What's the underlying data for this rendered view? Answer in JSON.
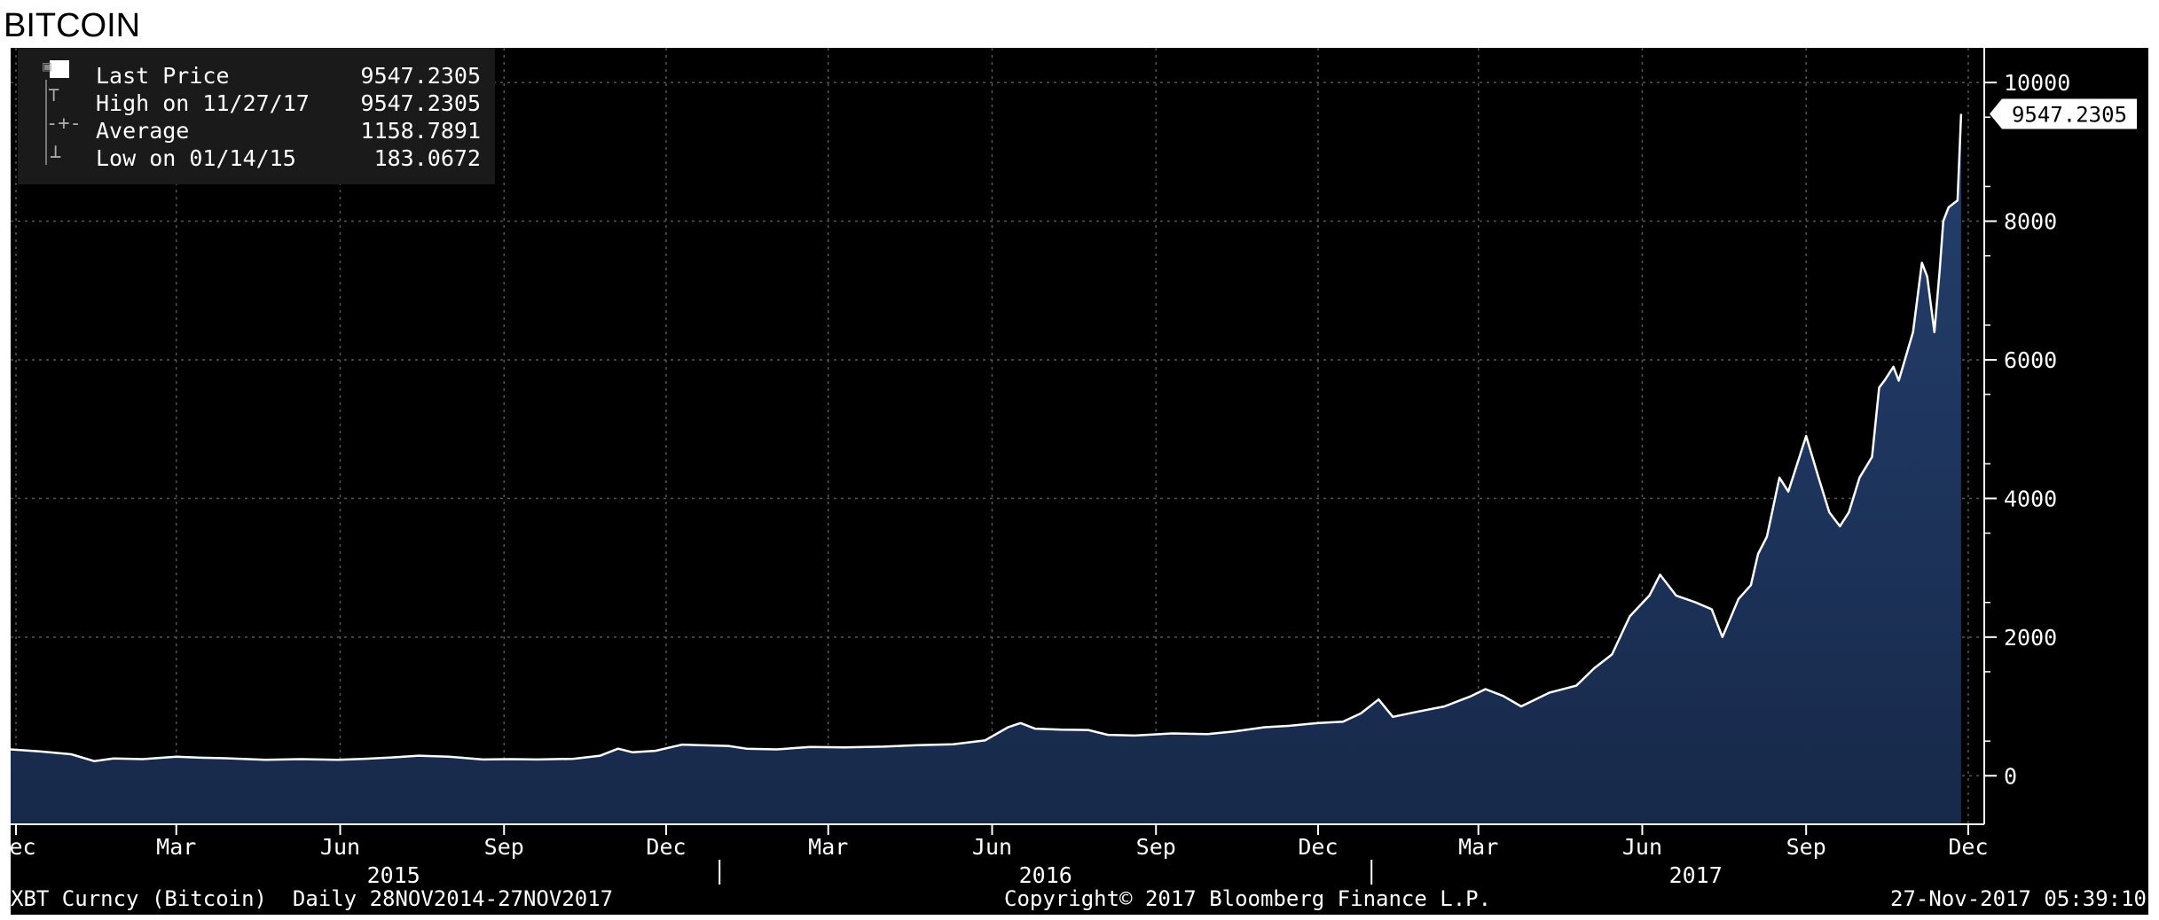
{
  "page_title": "BITCOIN",
  "chart_data": {
    "type": "area",
    "title": "",
    "xlabel": "",
    "ylabel": "",
    "ylim": [
      -700,
      10500
    ],
    "y_ticks": [
      0,
      2000,
      4000,
      6000,
      8000,
      10000
    ],
    "y_tick_labels": [
      "0",
      "2000",
      "4000",
      "6000",
      "8000",
      "10000"
    ],
    "x_range": [
      "2014-11-28",
      "2017-12-10"
    ],
    "x_month_ticks": [
      {
        "date": "2014-12-01",
        "label": "Dec"
      },
      {
        "date": "2015-03-01",
        "label": "Mar"
      },
      {
        "date": "2015-06-01",
        "label": "Jun"
      },
      {
        "date": "2015-09-01",
        "label": "Sep"
      },
      {
        "date": "2015-12-01",
        "label": "Dec"
      },
      {
        "date": "2016-03-01",
        "label": "Mar"
      },
      {
        "date": "2016-06-01",
        "label": "Jun"
      },
      {
        "date": "2016-09-01",
        "label": "Sep"
      },
      {
        "date": "2016-12-01",
        "label": "Dec"
      },
      {
        "date": "2017-03-01",
        "label": "Mar"
      },
      {
        "date": "2017-06-01",
        "label": "Jun"
      },
      {
        "date": "2017-09-01",
        "label": "Sep"
      },
      {
        "date": "2017-12-01",
        "label": "Dec"
      }
    ],
    "x_year_labels": [
      {
        "date": "2015-07-01",
        "label": "2015"
      },
      {
        "date": "2016-07-01",
        "label": "2016"
      },
      {
        "date": "2017-07-01",
        "label": "2017"
      }
    ],
    "grid": true,
    "legend_position": "top-left",
    "legend": [
      {
        "label": "Last Price",
        "value": "9547.2305"
      },
      {
        "label": "High on 11/27/17",
        "value": "9547.2305"
      },
      {
        "label": "Average",
        "value": "1158.7891"
      },
      {
        "label": "Low on 01/14/15",
        "value": "183.0672"
      }
    ],
    "last_price_label": "9547.2305",
    "footer_left": "XBT Curncy (Bitcoin)  Daily 28NOV2014-27NOV2017",
    "footer_center": "Copyright© 2017 Bloomberg Finance L.P.",
    "footer_right": "27-Nov-2017 05:39:10",
    "colors": {
      "background": "#000000",
      "area": "#17294a",
      "line": "#ffffff",
      "grid": "#555555",
      "text": "#ffffff"
    },
    "series": [
      {
        "name": "Last Price",
        "x": [
          "2014-11-28",
          "2014-12-15",
          "2015-01-01",
          "2015-01-14",
          "2015-01-25",
          "2015-02-10",
          "2015-03-01",
          "2015-03-15",
          "2015-04-01",
          "2015-04-20",
          "2015-05-10",
          "2015-05-30",
          "2015-06-15",
          "2015-07-01",
          "2015-07-15",
          "2015-08-01",
          "2015-08-20",
          "2015-09-05",
          "2015-09-20",
          "2015-10-10",
          "2015-10-25",
          "2015-11-04",
          "2015-11-12",
          "2015-11-25",
          "2015-12-10",
          "2015-12-20",
          "2016-01-05",
          "2016-01-15",
          "2016-02-01",
          "2016-02-20",
          "2016-03-10",
          "2016-04-01",
          "2016-04-20",
          "2016-05-10",
          "2016-05-28",
          "2016-06-10",
          "2016-06-17",
          "2016-06-25",
          "2016-07-10",
          "2016-07-25",
          "2016-08-05",
          "2016-08-20",
          "2016-09-10",
          "2016-09-30",
          "2016-10-15",
          "2016-11-01",
          "2016-11-15",
          "2016-12-01",
          "2016-12-15",
          "2016-12-25",
          "2017-01-04",
          "2017-01-12",
          "2017-01-25",
          "2017-02-10",
          "2017-02-25",
          "2017-03-05",
          "2017-03-15",
          "2017-03-25",
          "2017-04-10",
          "2017-04-25",
          "2017-05-05",
          "2017-05-15",
          "2017-05-25",
          "2017-06-05",
          "2017-06-11",
          "2017-06-20",
          "2017-07-01",
          "2017-07-10",
          "2017-07-16",
          "2017-07-25",
          "2017-08-01",
          "2017-08-05",
          "2017-08-10",
          "2017-08-17",
          "2017-08-22",
          "2017-09-01",
          "2017-09-08",
          "2017-09-14",
          "2017-09-20",
          "2017-09-25",
          "2017-10-01",
          "2017-10-08",
          "2017-10-12",
          "2017-10-15",
          "2017-10-20",
          "2017-10-23",
          "2017-10-31",
          "2017-11-05",
          "2017-11-08",
          "2017-11-12",
          "2017-11-15",
          "2017-11-17",
          "2017-11-20",
          "2017-11-25",
          "2017-11-27"
        ],
        "y": [
          380,
          350,
          310,
          210,
          250,
          240,
          275,
          260,
          250,
          230,
          240,
          230,
          245,
          265,
          290,
          275,
          235,
          240,
          235,
          245,
          290,
          390,
          340,
          360,
          450,
          440,
          430,
          390,
          380,
          415,
          410,
          420,
          440,
          455,
          510,
          700,
          760,
          680,
          665,
          660,
          590,
          580,
          610,
          600,
          640,
          700,
          720,
          760,
          780,
          900,
          1100,
          850,
          920,
          1000,
          1150,
          1250,
          1150,
          1000,
          1200,
          1300,
          1550,
          1750,
          2300,
          2600,
          2900,
          2600,
          2500,
          2400,
          2000,
          2550,
          2750,
          3200,
          3450,
          4300,
          4100,
          4900,
          4300,
          3800,
          3600,
          3800,
          4300,
          4600,
          5600,
          5700,
          5900,
          5700,
          6400,
          7400,
          7200,
          6400,
          7300,
          8000,
          8200,
          8300,
          9547
        ]
      }
    ]
  }
}
